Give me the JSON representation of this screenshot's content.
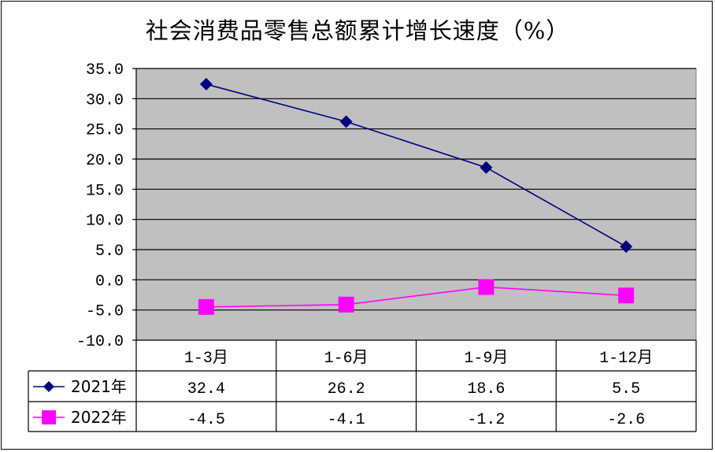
{
  "chart_data": {
    "type": "line",
    "title": "社会消费品零售总额累计增长速度（%）",
    "categories": [
      "1-3月",
      "1-6月",
      "1-9月",
      "1-12月"
    ],
    "series": [
      {
        "name": "2021年",
        "values": [
          32.4,
          26.2,
          18.6,
          5.5
        ],
        "color": "#000080",
        "marker": "diamond",
        "labels": [
          "32.4",
          "26.2",
          "18.6",
          "5.5"
        ]
      },
      {
        "name": "2022年",
        "values": [
          -4.5,
          -4.1,
          -1.2,
          -2.6
        ],
        "color": "#ff00ff",
        "marker": "square",
        "labels": [
          "-4.5",
          "-4.1",
          "-1.2",
          "-2.6"
        ]
      }
    ],
    "ylim": [
      -10,
      35
    ],
    "ytick_step": 5,
    "ytick_labels": [
      "35.0",
      "30.0",
      "25.0",
      "20.0",
      "15.0",
      "10.0",
      "5.0",
      "0.0",
      "-5.0",
      "-10.0"
    ],
    "plot_background": "#c0c0c0",
    "grid": true,
    "legend": "data-table"
  }
}
